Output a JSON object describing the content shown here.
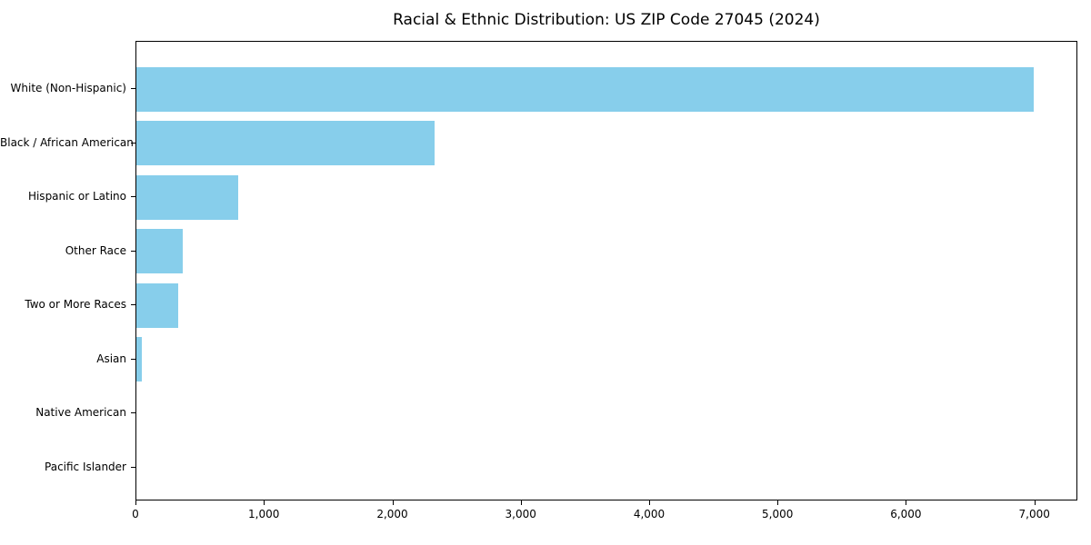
{
  "title": "Racial & Ethnic Distribution: US ZIP Code 27045 (2024)",
  "chart_data": {
    "type": "bar",
    "orientation": "horizontal",
    "title": "Racial & Ethnic Distribution: US ZIP Code 27045 (2024)",
    "xlabel": "",
    "ylabel": "",
    "categories": [
      "White (Non-Hispanic)",
      "Black / African American",
      "Hispanic or Latino",
      "Other Race",
      "Two or More Races",
      "Asian",
      "Native American",
      "Pacific Islander"
    ],
    "values": [
      6985,
      2325,
      790,
      360,
      325,
      45,
      0,
      0
    ],
    "xlim": [
      0,
      7335
    ],
    "x_ticks": [
      0,
      1000,
      2000,
      3000,
      4000,
      5000,
      6000,
      7000
    ],
    "x_tick_labels": [
      "0",
      "1,000",
      "2,000",
      "3,000",
      "4,000",
      "5,000",
      "6,000",
      "7,000"
    ],
    "bar_color": "#87CEEB",
    "grid": false,
    "legend": null,
    "frame": "full-box"
  },
  "colors": {
    "bar": "#87CEEB",
    "axis": "#000000",
    "text": "#000000",
    "background": "#ffffff"
  }
}
